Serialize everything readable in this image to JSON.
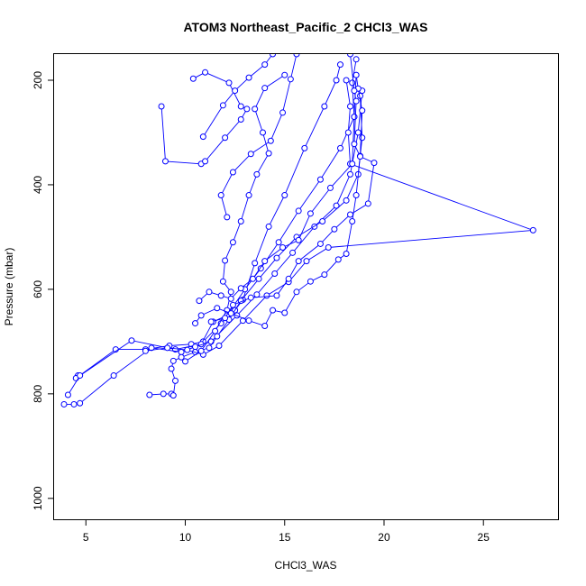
{
  "chart_data": {
    "type": "scatter",
    "title": "ATOM3 Northeast_Pacific_2 CHCl3_WAS",
    "xlabel": "CHCl3_WAS",
    "ylabel": "Pressure (mbar)",
    "xlim": [
      3.4,
      28.8
    ],
    "ylim": [
      1040,
      150
    ],
    "x_ticks": [
      5,
      10,
      15,
      20,
      25
    ],
    "y_ticks": [
      200,
      400,
      600,
      800,
      1000
    ],
    "y_reversed": true,
    "series_color": "#0000ff",
    "series": [
      {
        "points": [
          [
            4.6,
            765
          ],
          [
            4.5,
            770
          ],
          [
            6.5,
            715
          ],
          [
            8.0,
            715
          ],
          [
            9.2,
            708
          ],
          [
            10.3,
            705
          ],
          [
            10.9,
            700
          ],
          [
            11.8,
            665
          ],
          [
            12.5,
            640
          ],
          [
            12.9,
            620
          ],
          [
            13.5,
            550
          ],
          [
            14.2,
            480
          ],
          [
            15.0,
            420
          ],
          [
            16.0,
            330
          ],
          [
            17.0,
            250
          ],
          [
            17.6,
            200
          ],
          [
            17.8,
            170
          ]
        ]
      },
      {
        "points": [
          [
            4.1,
            802
          ],
          [
            4.7,
            765
          ],
          [
            7.3,
            698
          ],
          [
            9.5,
            715
          ],
          [
            10.8,
            705
          ],
          [
            11.4,
            662
          ],
          [
            12.1,
            650
          ],
          [
            13.0,
            600
          ],
          [
            13.8,
            560
          ],
          [
            14.7,
            510
          ],
          [
            15.7,
            450
          ],
          [
            16.8,
            390
          ],
          [
            17.8,
            330
          ],
          [
            18.5,
            270
          ],
          [
            18.6,
            190
          ]
        ]
      },
      {
        "points": [
          [
            3.9,
            820
          ],
          [
            4.4,
            820
          ],
          [
            4.7,
            818
          ],
          [
            6.4,
            765
          ],
          [
            8.3,
            712
          ],
          [
            9.8,
            720
          ],
          [
            10.5,
            710
          ],
          [
            11.3,
            700
          ],
          [
            12.6,
            650
          ],
          [
            13.6,
            610
          ],
          [
            14.5,
            570
          ],
          [
            15.4,
            530
          ],
          [
            16.5,
            480
          ],
          [
            17.6,
            440
          ],
          [
            18.3,
            380
          ],
          [
            18.7,
            300
          ],
          [
            18.9,
            220
          ]
        ]
      },
      {
        "points": [
          [
            8.2,
            802
          ],
          [
            8.9,
            800
          ],
          [
            9.3,
            800
          ],
          [
            9.4,
            803
          ],
          [
            9.5,
            775
          ],
          [
            9.3,
            752
          ],
          [
            9.4,
            737
          ],
          [
            9.8,
            730
          ],
          [
            10.5,
            720
          ],
          [
            11.2,
            712
          ],
          [
            11.6,
            690
          ],
          [
            12.2,
            658
          ],
          [
            12.8,
            622
          ],
          [
            13.7,
            580
          ],
          [
            14.6,
            540
          ],
          [
            15.6,
            500
          ],
          [
            16.9,
            470
          ],
          [
            18.1,
            430
          ],
          [
            18.7,
            380
          ],
          [
            18.9,
            310
          ],
          [
            18.8,
            230
          ]
        ]
      },
      {
        "points": [
          [
            8.0,
            718
          ],
          [
            9.1,
            712
          ],
          [
            10.1,
            716
          ],
          [
            10.9,
            725
          ],
          [
            11.7,
            708
          ],
          [
            12.9,
            660
          ],
          [
            14.1,
            612
          ],
          [
            15.2,
            586
          ],
          [
            16.1,
            546
          ],
          [
            17.2,
            520
          ],
          [
            27.5,
            487
          ],
          [
            18.3,
            360
          ],
          [
            18.2,
            300
          ],
          [
            18.3,
            250
          ],
          [
            18.1,
            200
          ]
        ]
      },
      {
        "points": [
          [
            10.0,
            738
          ],
          [
            10.8,
            718
          ],
          [
            11.5,
            680
          ],
          [
            12.1,
            640
          ],
          [
            12.3,
            605
          ],
          [
            11.9,
            585
          ],
          [
            12.0,
            545
          ],
          [
            12.4,
            510
          ],
          [
            12.8,
            470
          ],
          [
            13.2,
            420
          ],
          [
            13.6,
            380
          ],
          [
            14.2,
            340
          ],
          [
            13.9,
            300
          ],
          [
            13.5,
            255
          ],
          [
            14.0,
            215
          ],
          [
            15.0,
            190
          ]
        ]
      },
      {
        "points": [
          [
            8.8,
            250
          ],
          [
            9.0,
            355
          ],
          [
            10.8,
            360
          ],
          [
            11.0,
            355
          ],
          [
            12.0,
            310
          ],
          [
            12.8,
            275
          ],
          [
            13.1,
            255
          ],
          [
            12.8,
            250
          ],
          [
            12.2,
            205
          ],
          [
            11.0,
            185
          ],
          [
            10.4,
            197
          ]
        ]
      },
      {
        "points": [
          [
            10.7,
            622
          ],
          [
            11.2,
            605
          ],
          [
            11.8,
            612
          ],
          [
            12.3,
            618
          ],
          [
            12.8,
            598
          ],
          [
            13.4,
            580
          ],
          [
            14.0,
            546
          ],
          [
            14.9,
            520
          ],
          [
            15.7,
            506
          ],
          [
            16.3,
            455
          ],
          [
            17.3,
            406
          ],
          [
            18.4,
            360
          ],
          [
            18.5,
            270
          ],
          [
            18.4,
            205
          ],
          [
            18.6,
            160
          ]
        ]
      },
      {
        "points": [
          [
            10.5,
            665
          ],
          [
            10.8,
            650
          ],
          [
            11.6,
            636
          ],
          [
            12.3,
            646
          ],
          [
            13.2,
            660
          ],
          [
            14.0,
            670
          ],
          [
            14.4,
            640
          ],
          [
            15.0,
            645
          ],
          [
            15.6,
            605
          ],
          [
            16.3,
            585
          ],
          [
            17.0,
            572
          ],
          [
            17.7,
            543
          ],
          [
            18.1,
            532
          ],
          [
            18.4,
            470
          ],
          [
            18.6,
            420
          ],
          [
            18.8,
            345
          ],
          [
            18.9,
            258
          ],
          [
            18.7,
            216
          ],
          [
            18.6,
            190
          ]
        ]
      },
      {
        "points": [
          [
            11.3,
            662
          ],
          [
            12.0,
            655
          ],
          [
            12.4,
            630
          ],
          [
            13.3,
            616
          ],
          [
            14.6,
            612
          ],
          [
            15.2,
            580
          ],
          [
            15.7,
            546
          ],
          [
            16.8,
            513
          ],
          [
            17.5,
            485
          ],
          [
            18.3,
            457
          ],
          [
            19.2,
            436
          ],
          [
            19.5,
            358
          ],
          [
            18.8,
            346
          ],
          [
            18.5,
            322
          ],
          [
            18.6,
            240
          ],
          [
            18.5,
            220
          ],
          [
            18.3,
            150
          ]
        ]
      },
      {
        "points": [
          [
            10.9,
            308
          ],
          [
            11.9,
            248
          ],
          [
            12.5,
            220
          ],
          [
            13.2,
            195
          ],
          [
            14.0,
            170
          ],
          [
            14.4,
            150
          ]
        ]
      },
      {
        "points": [
          [
            12.1,
            462
          ],
          [
            11.8,
            420
          ],
          [
            12.4,
            376
          ],
          [
            13.3,
            341
          ],
          [
            14.3,
            316
          ],
          [
            14.9,
            262
          ],
          [
            15.3,
            198
          ],
          [
            15.6,
            150
          ]
        ]
      }
    ]
  }
}
